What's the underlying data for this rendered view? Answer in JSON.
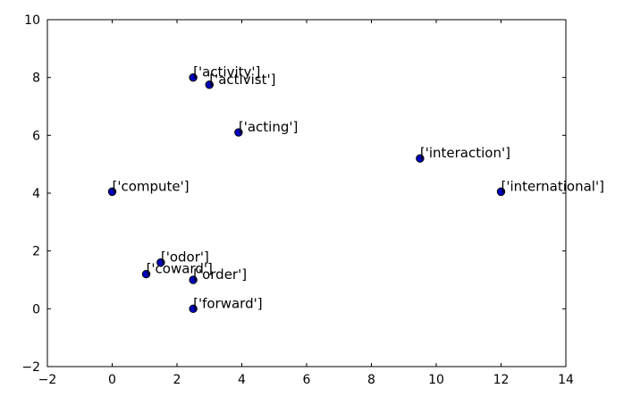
{
  "chart_data": {
    "type": "scatter",
    "title": "",
    "xlabel": "",
    "ylabel": "",
    "xlim": [
      -2,
      14
    ],
    "ylim": [
      -2,
      10
    ],
    "xticks": [
      "−2",
      "0",
      "2",
      "4",
      "6",
      "8",
      "10",
      "12",
      "14"
    ],
    "yticks": [
      "−2",
      "0",
      "2",
      "4",
      "6",
      "8",
      "10"
    ],
    "grid": false,
    "marker_color": "#0000bf",
    "marker_edge_color": "#000000",
    "points": [
      {
        "label": "['activity']",
        "x": 2.5,
        "y": 8.0
      },
      {
        "label": "['activist']",
        "x": 3.0,
        "y": 7.75
      },
      {
        "label": "['acting']",
        "x": 3.9,
        "y": 6.1
      },
      {
        "label": "['interaction']",
        "x": 9.5,
        "y": 5.2
      },
      {
        "label": "['compute']",
        "x": 0.0,
        "y": 4.05
      },
      {
        "label": "['international']",
        "x": 12.0,
        "y": 4.05
      },
      {
        "label": "['odor']",
        "x": 1.5,
        "y": 1.6
      },
      {
        "label": "['coward']",
        "x": 1.05,
        "y": 1.2
      },
      {
        "label": "['order']",
        "x": 2.5,
        "y": 1.0
      },
      {
        "label": "['forward']",
        "x": 2.5,
        "y": 0.0
      }
    ]
  }
}
